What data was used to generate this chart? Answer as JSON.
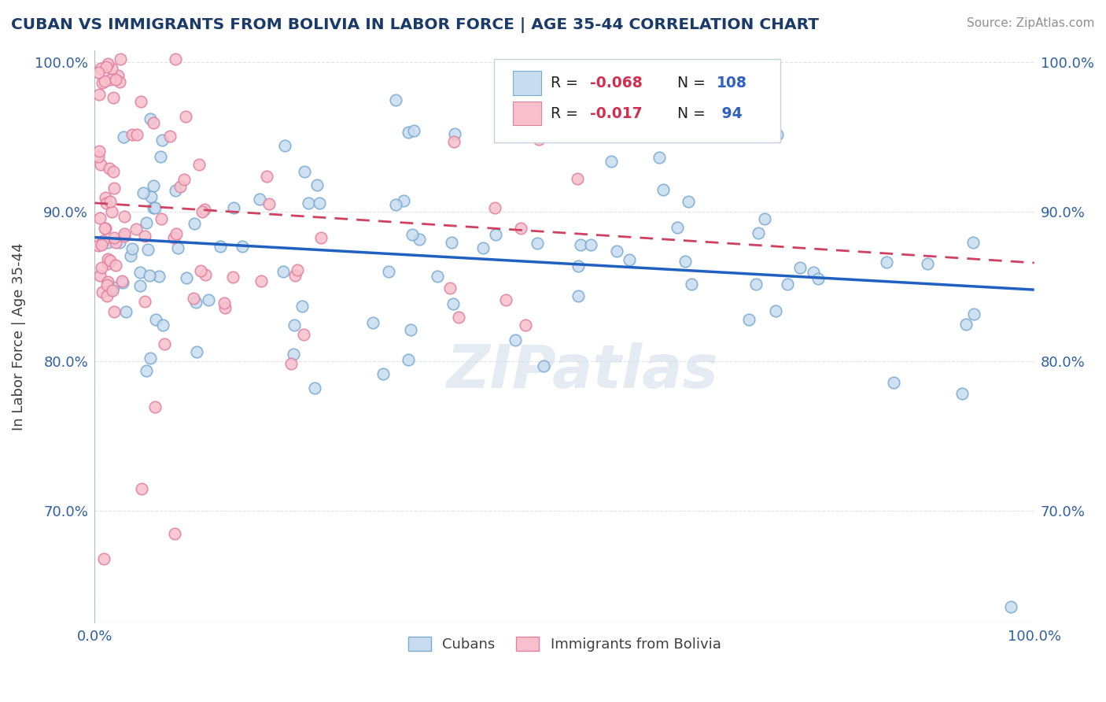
{
  "title": "CUBAN VS IMMIGRANTS FROM BOLIVIA IN LABOR FORCE | AGE 35-44 CORRELATION CHART",
  "source": "Source: ZipAtlas.com",
  "ylabel": "In Labor Force | Age 35-44",
  "xlim": [
    0.0,
    1.0
  ],
  "ylim": [
    0.625,
    1.008
  ],
  "ytick_vals": [
    0.7,
    0.8,
    0.9,
    1.0
  ],
  "ytick_labels": [
    "70.0%",
    "80.0%",
    "90.0%",
    "100.0%"
  ],
  "xtick_vals": [
    0.0,
    1.0
  ],
  "xtick_labels": [
    "0.0%",
    "100.0%"
  ],
  "watermark": "ZIPatlas",
  "blue_face": "#c8dcf0",
  "blue_edge": "#7aaad0",
  "pink_face": "#f8c0cc",
  "pink_edge": "#e080a0",
  "blue_line_color": "#2060c0",
  "pink_line_color": "#d04060",
  "title_color": "#1a3a6a",
  "axis_label_color": "#3060a0",
  "ylabel_color": "#404040",
  "grid_color": "#d8dce8",
  "cubans_label": "Cubans",
  "bolivia_label": "Immigrants from Bolivia",
  "blue_R": -0.068,
  "blue_N": 108,
  "pink_R": -0.017,
  "pink_N": 94,
  "blue_line_x0": 0.0,
  "blue_line_y0": 0.883,
  "blue_line_x1": 1.0,
  "blue_line_y1": 0.848,
  "pink_line_x0": 0.0,
  "pink_line_y0": 0.906,
  "pink_line_x1": 1.0,
  "pink_line_y1": 0.866,
  "seed": 77
}
